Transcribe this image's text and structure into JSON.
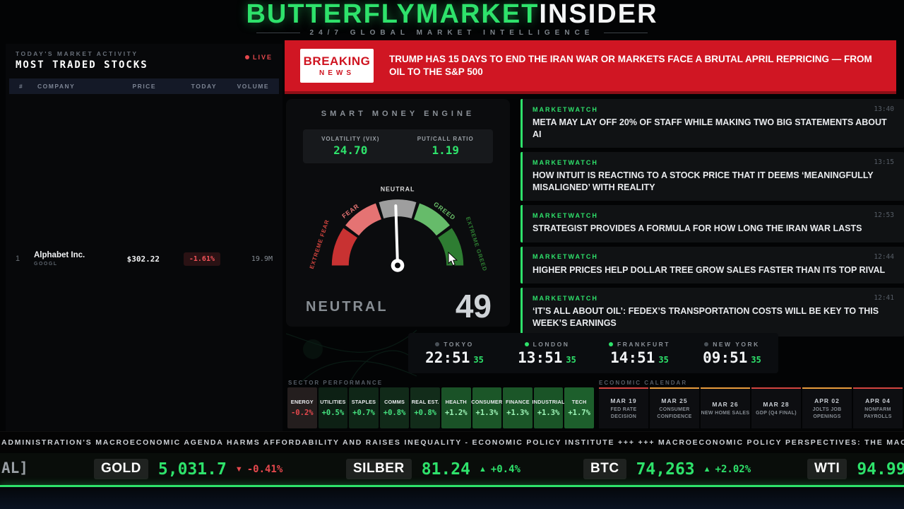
{
  "header": {
    "title_green": "BUTTERFLYMARKET",
    "title_white": "INSIDER",
    "subtitle": "24/7 GLOBAL MARKET INTELLIGENCE"
  },
  "sidebar": {
    "kicker": "TODAY'S MARKET ACTIVITY",
    "title": "MOST TRADED STOCKS",
    "live_label": "LIVE",
    "columns": {
      "rank": "#",
      "company": "COMPANY",
      "price": "PRICE",
      "today": "TODAY",
      "volume": "VOLUME"
    },
    "rows": [
      {
        "rank": "1",
        "company": "Alphabet Inc.",
        "ticker": "GOOGL",
        "price": "$302.22",
        "change": "-1.61%",
        "volume": "19.9M"
      }
    ]
  },
  "breaking": {
    "badge_line1": "BREAKING",
    "badge_line2": "NEWS",
    "headline": "TRUMP HAS 15 DAYS TO END THE IRAN WAR OR MARKETS FACE A BRUTAL APRIL REPRICING — FROM OIL TO THE S&P 500"
  },
  "engine": {
    "title": "SMART MONEY ENGINE",
    "stats": [
      {
        "label": "VOLATILITY (VIX)",
        "value": "24.70"
      },
      {
        "label": "PUT/CALL RATIO",
        "value": "1.19"
      }
    ],
    "gauge": {
      "value": 49,
      "status": "NEUTRAL",
      "score": "49",
      "segments": [
        "EXTREME FEAR",
        "FEAR",
        "NEUTRAL",
        "GREED",
        "EXTREME GREED"
      ],
      "segment_colors": [
        "#d3453f",
        "#e57373",
        "#9e9e9e",
        "#66bb6a",
        "#2e7d32"
      ]
    }
  },
  "news": {
    "items": [
      {
        "source": "MARKETWATCH",
        "time": "13:40",
        "headline": "META MAY LAY OFF 20% OF STAFF WHILE MAKING TWO BIG STATEMENTS ABOUT AI"
      },
      {
        "source": "MARKETWATCH",
        "time": "13:15",
        "headline": "HOW INTUIT IS REACTING TO A STOCK PRICE THAT IT DEEMS ‘MEANINGFULLY MISALIGNED’ WITH REALITY"
      },
      {
        "source": "MARKETWATCH",
        "time": "12:53",
        "headline": "STRATEGIST PROVIDES A FORMULA FOR HOW LONG THE IRAN WAR LASTS"
      },
      {
        "source": "MARKETWATCH",
        "time": "12:44",
        "headline": "HIGHER PRICES HELP DOLLAR TREE GROW SALES FASTER THAN ITS TOP RIVAL"
      },
      {
        "source": "MARKETWATCH",
        "time": "12:41",
        "headline": "‘IT’S ALL ABOUT OIL’: FEDEX’S TRANSPORTATION COSTS WILL BE KEY TO THIS WEEK’S EARNINGS"
      }
    ]
  },
  "clocks": [
    {
      "city": "TOKYO",
      "time": "22:51",
      "seconds": "35",
      "active": false
    },
    {
      "city": "LONDON",
      "time": "13:51",
      "seconds": "35",
      "active": true
    },
    {
      "city": "FRANKFURT",
      "time": "14:51",
      "seconds": "35",
      "active": true
    },
    {
      "city": "NEW YORK",
      "time": "09:51",
      "seconds": "35",
      "active": false
    }
  ],
  "sectors": {
    "title": "SECTOR PERFORMANCE",
    "tiles": [
      {
        "name": "ENERGY",
        "value": "-0.2%"
      },
      {
        "name": "UTILITIES",
        "value": "+0.5%"
      },
      {
        "name": "STAPLES",
        "value": "+0.7%"
      },
      {
        "name": "COMMS",
        "value": "+0.8%"
      },
      {
        "name": "REAL EST.",
        "value": "+0.8%"
      },
      {
        "name": "HEALTH",
        "value": "+1.2%"
      },
      {
        "name": "CONSUMER",
        "value": "+1.3%"
      },
      {
        "name": "FINANCE",
        "value": "+1.3%"
      },
      {
        "name": "INDUSTRIAL",
        "value": "+1.3%"
      },
      {
        "name": "TECH",
        "value": "+1.7%"
      }
    ]
  },
  "calendar": {
    "title": "ECONOMIC CALENDAR",
    "events": [
      {
        "date": "MAR 19",
        "event": "FED RATE DECISION",
        "severity": "red"
      },
      {
        "date": "MAR 25",
        "event": "CONSUMER CONFIDENCE",
        "severity": "orange"
      },
      {
        "date": "MAR 26",
        "event": "NEW HOME SALES",
        "severity": "orange"
      },
      {
        "date": "MAR 28",
        "event": "GDP (Q4 FINAL)",
        "severity": "red"
      },
      {
        "date": "APR 02",
        "event": "JOLTS JOB OPENINGS",
        "severity": "orange"
      },
      {
        "date": "APR 04",
        "event": "NONFARM PAYROLLS",
        "severity": "red"
      }
    ]
  },
  "ticker_line": {
    "text": "ADMINISTRATION'S MACROECONOMIC AGENDA HARMS AFFORDABILITY AND RAISES INEQUALITY - ECONOMIC POLICY INSTITUTE +++ +++ MACROECONOMIC POLICY PERSPECTIVES: THE MACROECONOMIC CAUSES AND CONSEQUENCES OF"
  },
  "price_ticker": {
    "partial_left": "AL]",
    "quotes": [
      {
        "symbol": "GOLD",
        "price": "5,031.7",
        "direction": "down",
        "arrow": "▼",
        "change": "-0.41%"
      },
      {
        "symbol": "SILBER",
        "price": "81.24",
        "direction": "up",
        "arrow": "▲",
        "change": "+0.4%"
      },
      {
        "symbol": "BTC",
        "price": "74,263",
        "direction": "up",
        "arrow": "▲",
        "change": "+2.02%"
      },
      {
        "symbol": "WTI",
        "price": "94.99",
        "direction": "up",
        "arrow": "",
        "change": ""
      }
    ]
  },
  "colors": {
    "accent_green": "#2ee26b",
    "alert_red": "#d01623",
    "neg_red": "#e5484d"
  }
}
